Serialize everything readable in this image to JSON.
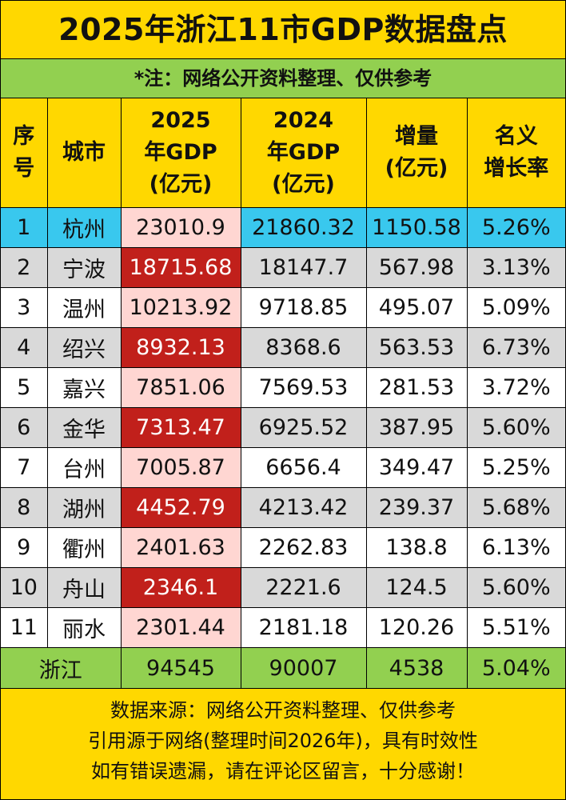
{
  "title": "2025年浙江11市GDP数据盘点",
  "note": "*注：网络公开资料整理、仅供参考",
  "headers": {
    "rank_line1": "序",
    "rank_line2": "号",
    "city": "城市",
    "gdp2025_line1": "2025",
    "gdp2025_line2": "年GDP",
    "gdp2025_line3": "(亿元)",
    "gdp2024_line1": "2024",
    "gdp2024_line2": "年GDP",
    "gdp2024_line3": "(亿元)",
    "increase_line1": "增量",
    "increase_line2": "(亿元)",
    "growth_line1": "名义",
    "growth_line2": "增长率"
  },
  "rows": [
    {
      "rank": "1",
      "city": "杭州",
      "gdp2025": "23010.9",
      "gdp2024": "21860.32",
      "increase": "1150.58",
      "growth": "5.26%"
    },
    {
      "rank": "2",
      "city": "宁波",
      "gdp2025": "18715.68",
      "gdp2024": "18147.7",
      "increase": "567.98",
      "growth": "3.13%"
    },
    {
      "rank": "3",
      "city": "温州",
      "gdp2025": "10213.92",
      "gdp2024": "9718.85",
      "increase": "495.07",
      "growth": "5.09%"
    },
    {
      "rank": "4",
      "city": "绍兴",
      "gdp2025": "8932.13",
      "gdp2024": "8368.6",
      "increase": "563.53",
      "growth": "6.73%"
    },
    {
      "rank": "5",
      "city": "嘉兴",
      "gdp2025": "7851.06",
      "gdp2024": "7569.53",
      "increase": "281.53",
      "growth": "3.72%"
    },
    {
      "rank": "6",
      "city": "金华",
      "gdp2025": "7313.47",
      "gdp2024": "6925.52",
      "increase": "387.95",
      "growth": "5.60%"
    },
    {
      "rank": "7",
      "city": "台州",
      "gdp2025": "7005.87",
      "gdp2024": "6656.4",
      "increase": "349.47",
      "growth": "5.25%"
    },
    {
      "rank": "8",
      "city": "湖州",
      "gdp2025": "4452.79",
      "gdp2024": "4213.42",
      "increase": "239.37",
      "growth": "5.68%"
    },
    {
      "rank": "9",
      "city": "衢州",
      "gdp2025": "2401.63",
      "gdp2024": "2262.83",
      "increase": "138.8",
      "growth": "6.13%"
    },
    {
      "rank": "10",
      "city": "舟山",
      "gdp2025": "2346.1",
      "gdp2024": "2221.6",
      "increase": "124.5",
      "growth": "5.60%"
    },
    {
      "rank": "11",
      "city": "丽水",
      "gdp2025": "2301.44",
      "gdp2024": "2181.18",
      "increase": "120.26",
      "growth": "5.51%"
    }
  ],
  "total": {
    "label": "浙江",
    "gdp2025": "94545",
    "gdp2024": "90007",
    "increase": "4538",
    "growth": "5.04%"
  },
  "footer": {
    "line1": "数据来源：网络公开资料整理、仅供参考",
    "line2": "引用源于网络(整理时间2026年)，具有时效性",
    "line3": "如有错误遗漏，请在评论区留言，十分感谢！"
  },
  "colors": {
    "title_bg": "#FFD800",
    "note_bg": "#92D050",
    "top_row_bg": "#39C8EE",
    "stripe_gray": "#D9D9D9",
    "gdp2025_pink": "#FFD6D2",
    "gdp2025_red": "#C1201B",
    "total_bg": "#92D050"
  }
}
